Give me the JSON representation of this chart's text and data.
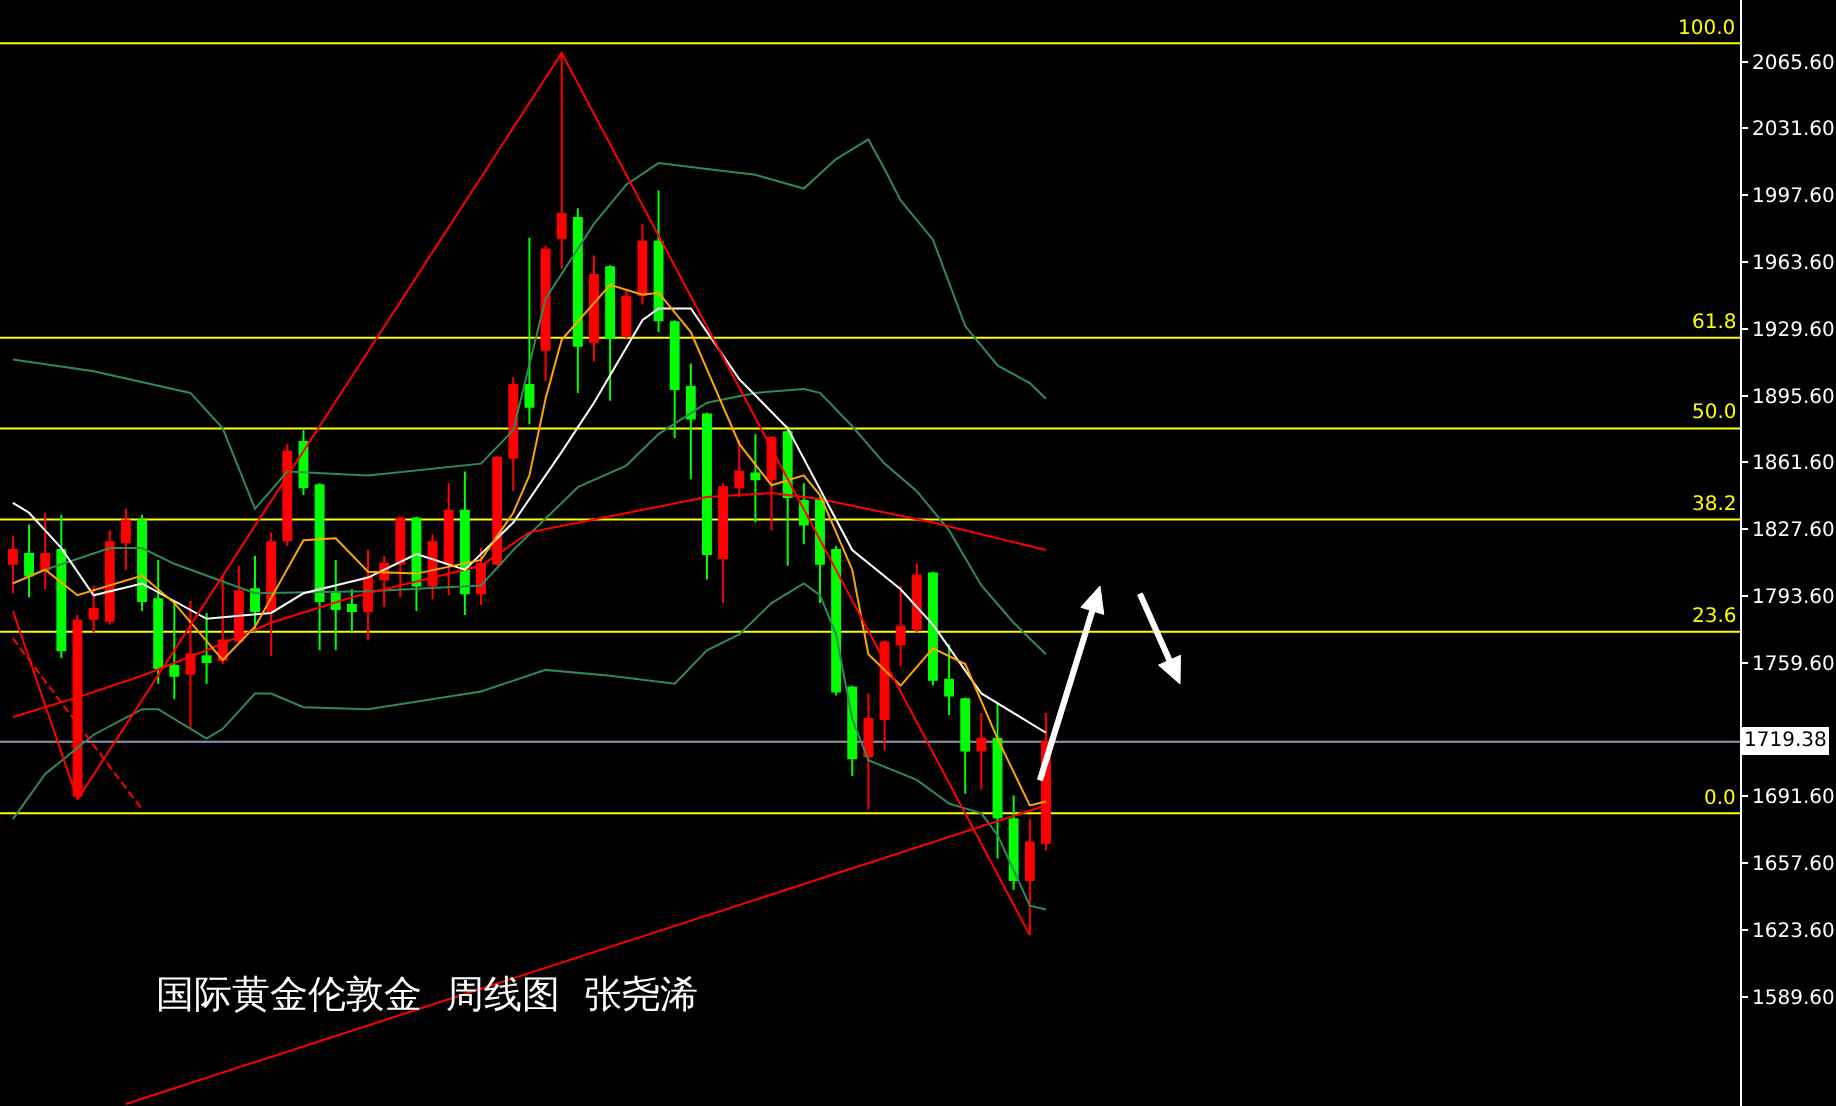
{
  "chart_data": {
    "type": "candlestick",
    "title": "国际黄金伦敦金  周线图  张尧浠",
    "categories": [
      null,
      null,
      null,
      null,
      null,
      null,
      null,
      null,
      null,
      null,
      null,
      null,
      null,
      null,
      null,
      null,
      null,
      null,
      null,
      null,
      null,
      null,
      null,
      null,
      null,
      null,
      null,
      null,
      null,
      null,
      null,
      null,
      null,
      null,
      null,
      null,
      null,
      null,
      null,
      null,
      null,
      null,
      null,
      null,
      null,
      null,
      null,
      null,
      null,
      null,
      null,
      null,
      null,
      null,
      null,
      null,
      null,
      null,
      null,
      null,
      null,
      null,
      null,
      null,
      null
    ],
    "ohlc": [
      [
        1810,
        1824,
        1795,
        1817
      ],
      [
        1815,
        1830,
        1793,
        1804
      ],
      [
        1807,
        1836,
        1797,
        1815
      ],
      [
        1817,
        1835,
        1762,
        1766
      ],
      [
        1692,
        1784,
        1690,
        1781
      ],
      [
        1782,
        1799,
        1775,
        1787
      ],
      [
        1781,
        1827,
        1779,
        1821
      ],
      [
        1821,
        1838,
        1807,
        1832
      ],
      [
        1832,
        1835,
        1786,
        1791
      ],
      [
        1792,
        1812,
        1749,
        1757
      ],
      [
        1758,
        1790,
        1741,
        1753
      ],
      [
        1754,
        1791,
        1726,
        1764
      ],
      [
        1763,
        1785,
        1749,
        1760
      ],
      [
        1761,
        1804,
        1759,
        1771
      ],
      [
        1771,
        1809,
        1770,
        1796
      ],
      [
        1797,
        1814,
        1775,
        1786
      ],
      [
        1786,
        1826,
        1763,
        1821
      ],
      [
        1822,
        1871,
        1819,
        1867
      ],
      [
        1872,
        1878,
        1845,
        1849
      ],
      [
        1850,
        1851,
        1766,
        1791
      ],
      [
        1795,
        1812,
        1766,
        1787
      ],
      [
        1789,
        1797,
        1775,
        1786
      ],
      [
        1786,
        1817,
        1771,
        1803
      ],
      [
        1802,
        1814,
        1788,
        1810
      ],
      [
        1810,
        1834,
        1793,
        1833
      ],
      [
        1833,
        1834,
        1786,
        1799
      ],
      [
        1799,
        1825,
        1792,
        1821
      ],
      [
        1810,
        1851,
        1794,
        1837
      ],
      [
        1837,
        1857,
        1784,
        1795
      ],
      [
        1795,
        1818,
        1789,
        1810
      ],
      [
        1810,
        1865,
        1809,
        1864
      ],
      [
        1864,
        1905,
        1847,
        1901
      ],
      [
        1901,
        1976,
        1881,
        1890
      ],
      [
        1919,
        1972,
        1903,
        1970
      ],
      [
        1976,
        2070,
        1960,
        1988
      ],
      [
        1986,
        1991,
        1897,
        1921
      ],
      [
        1923,
        1967,
        1913,
        1957
      ],
      [
        1961,
        1962,
        1893,
        1925
      ],
      [
        1926,
        1949,
        1925,
        1946
      ],
      [
        1947,
        1983,
        1942,
        1974
      ],
      [
        1974,
        2000,
        1928,
        1934
      ],
      [
        1933,
        1934,
        1874,
        1899
      ],
      [
        1900,
        1912,
        1853,
        1884
      ],
      [
        1886,
        1887,
        1802,
        1815
      ],
      [
        1813,
        1851,
        1790,
        1849
      ],
      [
        1849,
        1873,
        1844,
        1857
      ],
      [
        1856,
        1876,
        1831,
        1853
      ],
      [
        1853,
        1875,
        1827,
        1874
      ],
      [
        1877,
        1880,
        1809,
        1844
      ],
      [
        1842,
        1851,
        1820,
        1830
      ],
      [
        1843,
        1844,
        1790,
        1810
      ],
      [
        1817,
        1819,
        1743,
        1745
      ],
      [
        1747,
        1748,
        1702,
        1711
      ],
      [
        1712,
        1744,
        1685,
        1731
      ],
      [
        1731,
        1771,
        1715,
        1770
      ],
      [
        1769,
        1799,
        1758,
        1778
      ],
      [
        1777,
        1810,
        1775,
        1804
      ],
      [
        1805,
        1806,
        1748,
        1751
      ],
      [
        1751,
        1769,
        1733,
        1743
      ],
      [
        1741,
        1742,
        1693,
        1715
      ],
      [
        1715,
        1734,
        1695,
        1721
      ],
      [
        1721,
        1739,
        1660,
        1681
      ],
      [
        1680,
        1692,
        1644,
        1649
      ],
      [
        1649,
        1680,
        1621,
        1668
      ],
      [
        1668,
        1734,
        1664,
        1719.38
      ]
    ],
    "colors": [
      "#ff0000",
      "#00ff00",
      "#ff0000",
      "#00ff00",
      "#ff0000",
      "#ff0000",
      "#ff0000",
      "#ff0000",
      "#00ff00",
      "#00ff00",
      "#00ff00",
      "#ff0000",
      "#00ff00",
      "#ff0000",
      "#ff0000",
      "#00ff00",
      "#ff0000",
      "#ff0000",
      "#00ff00",
      "#00ff00",
      "#00ff00",
      "#00ff00",
      "#ff0000",
      "#ff0000",
      "#ff0000",
      "#00ff00",
      "#ff0000",
      "#ff0000",
      "#00ff00",
      "#ff0000",
      "#ff0000",
      "#ff0000",
      "#00ff00",
      "#ff0000",
      "#ff0000",
      "#00ff00",
      "#ff0000",
      "#00ff00",
      "#ff0000",
      "#ff0000",
      "#00ff00",
      "#00ff00",
      "#00ff00",
      "#00ff00",
      "#ff0000",
      "#ff0000",
      "#00ff00",
      "#ff0000",
      "#00ff00",
      "#00ff00",
      "#00ff00",
      "#00ff00",
      "#00ff00",
      "#ff0000",
      "#ff0000",
      "#ff0000",
      "#ff0000",
      "#00ff00",
      "#00ff00",
      "#00ff00",
      "#ff0000",
      "#00ff00",
      "#00ff00",
      "#ff0000",
      "#ff0000"
    ],
    "series": [
      {
        "type": "line",
        "color": "#2e8b57",
        "values": [
          1914,
          null,
          null,
          null,
          null,
          1908,
          null,
          null,
          null,
          null,
          null,
          1897,
          null,
          1879,
          null,
          1838,
          null,
          1857,
          null,
          null,
          null,
          null,
          1855,
          null,
          null,
          null,
          null,
          null,
          null,
          1861,
          null,
          1878,
          null,
          1945,
          null,
          null,
          1983,
          null,
          2003,
          null,
          2014,
          null,
          null,
          2011,
          null,
          null,
          2008,
          null,
          null,
          2001,
          null,
          2016,
          null,
          2026,
          2011,
          1995,
          null,
          1975,
          null,
          1931,
          null,
          1911,
          null,
          1902,
          1894
        ]
      },
      {
        "type": "line",
        "color": "#2e8b57",
        "values": [
          1800,
          null,
          1807,
          null,
          null,
          null,
          1818,
          null,
          1818,
          null,
          1810,
          null,
          null,
          1801,
          null,
          1795,
          null,
          null,
          null,
          null,
          null,
          null,
          1796,
          null,
          null,
          null,
          null,
          null,
          null,
          1799,
          null,
          1817,
          null,
          null,
          null,
          1849,
          null,
          null,
          1860,
          null,
          1876,
          null,
          null,
          1892,
          null,
          null,
          1897,
          null,
          null,
          1899,
          1897,
          null,
          1880,
          null,
          1861,
          null,
          1847,
          null,
          1827,
          null,
          1799,
          null,
          1780,
          null,
          1764
        ]
      },
      {
        "type": "line",
        "color": "#2e8b57",
        "values": [
          1680,
          null,
          1703,
          null,
          null,
          1723,
          null,
          null,
          1736,
          1736,
          null,
          null,
          1721,
          1726,
          null,
          1744,
          1744,
          null,
          1737,
          null,
          null,
          null,
          1736,
          null,
          null,
          null,
          null,
          null,
          null,
          1745,
          null,
          null,
          null,
          1756,
          null,
          null,
          null,
          1753,
          null,
          null,
          null,
          1749,
          null,
          1766,
          null,
          1774,
          null,
          1790,
          null,
          1800,
          1794,
          1774,
          1731,
          1710,
          null,
          null,
          1700,
          null,
          1688,
          null,
          1683,
          1672,
          null,
          1636,
          1634
        ]
      },
      {
        "type": "line",
        "color": "#ff0000",
        "values": [
          1732,
          null,
          null,
          null,
          1742,
          null,
          null,
          null,
          1753,
          null,
          null,
          null,
          1766,
          null,
          null,
          null,
          1780,
          null,
          null,
          null,
          null,
          1793,
          null,
          null,
          null,
          null,
          null,
          null,
          null,
          1809,
          null,
          null,
          1826,
          null,
          null,
          null,
          null,
          null,
          null,
          null,
          null,
          null,
          null,
          1844,
          null,
          null,
          null,
          1846,
          null,
          null,
          1843,
          null,
          null,
          null,
          null,
          null,
          null,
          1831,
          null,
          null,
          null,
          null,
          null,
          null,
          1817
        ]
      },
      {
        "type": "line",
        "color": "#ffffff",
        "values": [
          1841,
          1836,
          null,
          1818,
          null,
          1794,
          null,
          null,
          1800,
          null,
          null,
          null,
          1782,
          null,
          null,
          null,
          1785,
          null,
          1795,
          null,
          null,
          null,
          1803,
          null,
          null,
          1815,
          null,
          null,
          1807,
          null,
          null,
          1831,
          null,
          null,
          1867,
          null,
          1892,
          null,
          null,
          1934,
          1940,
          null,
          1940,
          null,
          null,
          1904,
          null,
          null,
          1879,
          null,
          null,
          null,
          1817,
          null,
          null,
          1797,
          null,
          1779,
          null,
          null,
          1744,
          null,
          null,
          null,
          1724
        ]
      },
      {
        "type": "line",
        "color": "#ffa500",
        "values": [
          1800,
          null,
          1807,
          null,
          1794,
          null,
          null,
          null,
          1804,
          null,
          1790,
          null,
          null,
          1761,
          null,
          1778,
          null,
          null,
          1822,
          null,
          1823,
          null,
          1806,
          null,
          null,
          1805,
          null,
          null,
          null,
          1812,
          null,
          1836,
          1855,
          1894,
          1924,
          null,
          null,
          1952,
          null,
          1947,
          1948,
          null,
          1928,
          1909,
          null,
          1871,
          null,
          1850,
          null,
          1855,
          1845,
          null,
          1807,
          1764,
          null,
          1748,
          null,
          1767,
          null,
          1759,
          null,
          1721,
          null,
          1687,
          1689
        ]
      },
      {
        "type": "line",
        "color": "#ff0000",
        "values": [
          1786,
          null,
          null,
          null,
          1690,
          null,
          null,
          null,
          null,
          null,
          null,
          null,
          null,
          null,
          null,
          null,
          null,
          null,
          null,
          null,
          null,
          null,
          null,
          null,
          null,
          null,
          null,
          null,
          null,
          null,
          null,
          null,
          null,
          null,
          2070,
          null,
          null,
          null,
          null,
          null,
          null,
          null,
          null,
          null,
          null,
          null,
          null,
          null,
          null,
          null,
          null,
          null,
          null,
          null,
          null,
          null,
          null,
          null,
          null,
          null,
          null,
          null,
          null,
          1621,
          null
        ]
      },
      {
        "type": "line",
        "color": "#ff0000",
        "values": [
          null,
          null,
          null,
          null,
          null,
          null,
          null,
          1535,
          null,
          null,
          null,
          null,
          null,
          null,
          null,
          null,
          null,
          null,
          null,
          null,
          null,
          null,
          null,
          null,
          null,
          null,
          null,
          null,
          null,
          null,
          null,
          null,
          null,
          null,
          null,
          null,
          null,
          null,
          null,
          null,
          null,
          null,
          null,
          null,
          null,
          null,
          null,
          null,
          null,
          null,
          null,
          null,
          null,
          null,
          null,
          null,
          null,
          null,
          null,
          null,
          null,
          null,
          null,
          null,
          1687
        ]
      },
      {
        "type": "line",
        "color": "#ff0000",
        "line_style": "dashed",
        "values": [
          1772,
          null,
          null,
          null,
          null,
          null,
          null,
          null,
          1685,
          null,
          null,
          null,
          null,
          null,
          null,
          null,
          null,
          null,
          null,
          null,
          null,
          null,
          null,
          null,
          null,
          null,
          null,
          null,
          null,
          null,
          null,
          null,
          null,
          null,
          null,
          null,
          null,
          null,
          null,
          null,
          null,
          null,
          null,
          null,
          null,
          null,
          null,
          null,
          null,
          null,
          null,
          null,
          null,
          null,
          null,
          null,
          null,
          null,
          null,
          null,
          null,
          null,
          null,
          null,
          null
        ]
      }
    ],
    "ylim": [
      1534,
      2097
    ],
    "yticks": [
      {
        "value": 2065.6,
        "label": "2065.60"
      },
      {
        "value": 2031.6,
        "label": "2031.60"
      },
      {
        "value": 1997.6,
        "label": "1997.60"
      },
      {
        "value": 1963.6,
        "label": "1963.60"
      },
      {
        "value": 1929.6,
        "label": "1929.60"
      },
      {
        "value": 1895.6,
        "label": "1895.60"
      },
      {
        "value": 1861.6,
        "label": "1861.60"
      },
      {
        "value": 1827.6,
        "label": "1827.60"
      },
      {
        "value": 1793.6,
        "label": "1793.60"
      },
      {
        "value": 1759.6,
        "label": "1759.60"
      },
      {
        "value": 1691.6,
        "label": "1691.60"
      },
      {
        "value": 1657.6,
        "label": "1657.60"
      },
      {
        "value": 1623.6,
        "label": "1623.60"
      },
      {
        "value": 1589.6,
        "label": "1589.60"
      }
    ],
    "ref_lines": [
      {
        "axis": "y",
        "value": 2075,
        "color": "#ffff00"
      },
      {
        "axis": "y",
        "value": 1925.1,
        "color": "#ffff00"
      },
      {
        "axis": "y",
        "value": 1878.9,
        "color": "#ffff00"
      },
      {
        "axis": "y",
        "value": 1832.6,
        "color": "#ffff00"
      },
      {
        "axis": "y",
        "value": 1775.4,
        "color": "#ffff00"
      },
      {
        "axis": "y",
        "value": 1683,
        "color": "#ffff00"
      },
      {
        "axis": "y",
        "value": 1719.38,
        "color": "#8c9bb5"
      }
    ],
    "annotations": [
      "1719.38",
      {
        "text": "100.0",
        "y": 2075
      },
      {
        "text": "61.8",
        "y": 1925.1
      },
      {
        "text": "50.0",
        "y": 1878.9
      },
      {
        "text": "38.2",
        "y": 1832.6
      },
      {
        "text": "23.6",
        "y": 1775.4
      },
      {
        "text": "0.0",
        "y": 1683
      }
    ],
    "grid": false,
    "tick_labels": "y"
  }
}
